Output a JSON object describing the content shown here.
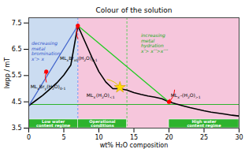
{
  "chart_data": {
    "type": "line",
    "title": "Colour of the solution",
    "xlabel": "wt% H₂O composition",
    "ylabel": "lwpp / mT",
    "xlim": [
      0,
      30
    ],
    "ylim": [
      3.5,
      7.7
    ],
    "xticks": [
      0,
      5,
      10,
      15,
      20,
      25,
      30
    ],
    "yticks": [
      3.5,
      4.5,
      5.5,
      6.5,
      7.5
    ],
    "background": {
      "split_x": 7,
      "left_color": "#c5d8f0",
      "right_color": "#f5c0d8"
    },
    "vlines": [
      {
        "x": 7,
        "color": "#5599ff",
        "line_style": "dashed"
      },
      {
        "x": 14,
        "color": "#55cc55",
        "line_style": "dashed"
      }
    ],
    "hlines": [
      {
        "y": 4.4,
        "color": "#2db32d",
        "line_style": "solid"
      }
    ],
    "series": [
      {
        "color": "black",
        "x": [
          0,
          1,
          2,
          3,
          4,
          5,
          6,
          7,
          8,
          9,
          10,
          11,
          12,
          13,
          14,
          15,
          16,
          17,
          18,
          19,
          20,
          21,
          22,
          23,
          24,
          25,
          26,
          27,
          28,
          29,
          30
        ],
        "values": [
          4.35,
          4.55,
          4.75,
          4.98,
          5.22,
          5.52,
          5.9,
          7.4,
          6.8,
          6.2,
          5.65,
          5.25,
          5.0,
          5.0,
          4.95,
          4.85,
          4.78,
          4.72,
          4.68,
          4.62,
          4.5,
          4.42,
          4.35,
          4.28,
          4.22,
          4.16,
          4.11,
          4.07,
          4.03,
          3.99,
          3.96
        ]
      },
      {
        "color": "#22cc22",
        "x": [
          7,
          20
        ],
        "values": [
          7.4,
          4.5
        ]
      },
      {
        "color": "#4466cc",
        "x": [
          0,
          7
        ],
        "values": [
          4.35,
          7.4
        ]
      }
    ],
    "markers": [
      {
        "marker": "circle",
        "color": "red",
        "x": [
          2.5,
          7,
          20
        ],
        "values": [
          5.65,
          7.4,
          4.5
        ]
      },
      {
        "marker": "star",
        "color": "#ffdd00",
        "x": [
          13
        ],
        "values": [
          5.05
        ]
      }
    ],
    "arrows": [
      {
        "x1": 2.5,
        "y1": 5.25,
        "x2": 2.5,
        "y2": 5.65,
        "color": "red"
      },
      {
        "x1": 7.0,
        "y1": 6.9,
        "x2": 7.0,
        "y2": 7.38,
        "color": "red"
      },
      {
        "x1": 20.8,
        "y1": 4.95,
        "x2": 20.0,
        "y2": 4.5,
        "color": "red"
      },
      {
        "x1": 11.2,
        "y1": 5.35,
        "x2": 13.0,
        "y2": 5.05,
        "color": "#ddcc00"
      }
    ],
    "regimes": {
      "labels": [
        "Low water\ncontent regime",
        "Operational\nconditions",
        "High water\ncontent regime"
      ],
      "xmin": [
        0,
        7,
        20
      ],
      "xmax": [
        7,
        14,
        30
      ],
      "ymax": 3.83,
      "color": "#2db32d"
    },
    "annotations": [
      {
        "text": "decreasing\nmetal\nbromination\nx’> x",
        "x": 0.4,
        "y": 6.8,
        "color": "#3355cc"
      },
      {
        "text": "increasing\nmetal\nhydration\nx’> x’’>x’’’",
        "x": 16.0,
        "y": 7.1,
        "color": "#22aa22"
      }
    ],
    "species_labels": [
      {
        "parts": [
          "ML",
          {
            "sub": "x"
          },
          "Br",
          {
            "sub": "x0"
          },
          "(H",
          {
            "sub": "2"
          },
          "O)",
          {
            "sub": "0-1"
          }
        ],
        "x": 4.5,
        "y": 6.15
      },
      {
        "parts": [
          "ML",
          {
            "sub": "x"
          },
          "Br",
          {
            "sub": "y"
          },
          "(H",
          {
            "sub": "2"
          },
          "O)",
          {
            "sub": "0-1"
          }
        ],
        "x": 0.3,
        "y": 5.05
      },
      {
        "parts": [
          "ML",
          {
            "sub": "x′"
          },
          "(H",
          {
            "sub": "2"
          },
          "O)",
          {
            "sub": "<1"
          }
        ],
        "x": 8.3,
        "y": 4.72
      },
      {
        "parts": [
          "ML",
          {
            "sub": "x′"
          },
          "-(H",
          {
            "sub": "2"
          },
          "O)",
          {
            "sub": ">1"
          }
        ],
        "x": 20.3,
        "y": 4.72
      }
    ],
    "grid": false
  }
}
